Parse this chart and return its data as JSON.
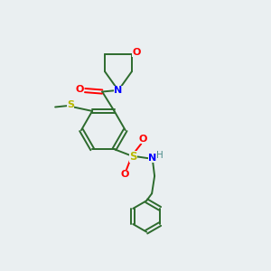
{
  "bg_color": "#eaeff1",
  "bond_color": "#2d6b2d",
  "atom_colors": {
    "O": "#ff0000",
    "N": "#0000ff",
    "S": "#b8b800",
    "H": "#4a8a8a"
  },
  "lw": 1.4,
  "ring_r": 0.82,
  "ph_r": 0.58
}
